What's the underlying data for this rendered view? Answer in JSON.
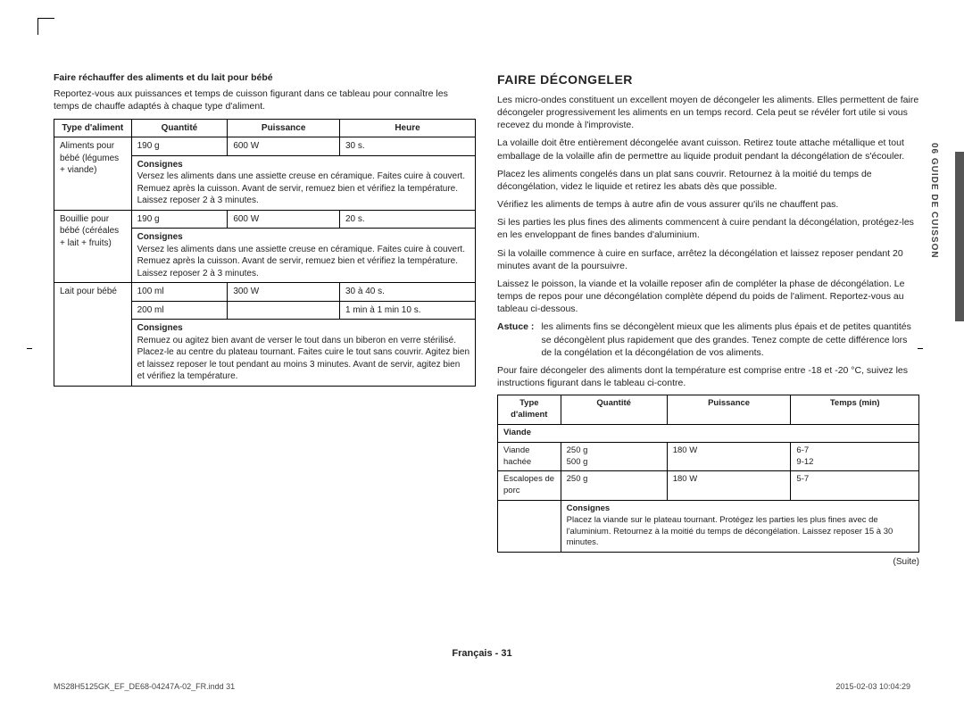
{
  "sideTab": "06  GUIDE DE CUISSON",
  "left": {
    "heading": "Faire réchauffer des aliments et du lait pour bébé",
    "intro": "Reportez-vous aux puissances et temps de cuisson figurant dans ce tableau pour connaître les temps de chauffe adaptés à chaque type d'aliment.",
    "headers": [
      "Type d'aliment",
      "Quantité",
      "Puissance",
      "Heure"
    ],
    "consignesLabel": "Consignes",
    "rows": [
      {
        "type": "Aliments pour bébé (légumes + viande)",
        "qty": "190 g",
        "power": "600 W",
        "time": "30 s.",
        "note": "Versez les aliments dans une assiette creuse en céramique. Faites cuire à couvert. Remuez après la cuisson. Avant de servir, remuez bien et vérifiez la température. Laissez reposer 2 à 3 minutes."
      },
      {
        "type": "Bouillie pour bébé (céréales + lait + fruits)",
        "qty": "190 g",
        "power": "600 W",
        "time": "20 s.",
        "note": "Versez les aliments dans une assiette creuse en céramique. Faites cuire à couvert. Remuez après la cuisson. Avant de servir, remuez bien et vérifiez la température. Laissez reposer 2 à 3 minutes."
      },
      {
        "type": "Lait pour bébé",
        "lines": [
          {
            "qty": "100 ml",
            "power": "300 W",
            "time": "30 à 40 s."
          },
          {
            "qty": "200 ml",
            "power": "",
            "time": "1 min à 1 min 10 s."
          }
        ],
        "note": "Remuez ou agitez bien avant de verser le tout dans un biberon en verre stérilisé. Placez-le au centre du plateau tournant. Faites cuire le tout sans couvrir. Agitez bien et laissez reposer le tout pendant au moins 3 minutes. Avant de servir, agitez bien et vérifiez la température."
      }
    ]
  },
  "right": {
    "title": "FAIRE DÉCONGELER",
    "paras": [
      "Les micro-ondes constituent un excellent moyen de décongeler les aliments. Elles permettent de faire décongeler progressivement les aliments en un temps record. Cela peut se révéler fort utile si vous recevez du monde à l'improviste.",
      "La volaille doit être entièrement décongelée avant cuisson. Retirez toute attache métallique et tout emballage de la volaille afin de permettre au liquide produit pendant la décongélation de s'écouler.",
      "Placez les aliments congelés dans un plat sans couvrir. Retournez à la moitié du temps de décongélation, videz le liquide et retirez les abats dès que possible.",
      "Vérifiez les aliments de temps à autre afin de vous assurer qu'ils ne chauffent pas.",
      "Si les parties les plus fines des aliments commencent à cuire pendant la décongélation, protégez-les en les enveloppant de fines bandes d'aluminium.",
      "Si la volaille commence à cuire en surface, arrêtez la décongélation et laissez reposer pendant 20 minutes avant de la poursuivre.",
      "Laissez le poisson, la viande et la volaille reposer afin de compléter la phase de décongélation. Le temps de repos pour une décongélation complète dépend du poids de l'aliment. Reportez-vous au tableau ci-dessous."
    ],
    "tipLabel": "Astuce :",
    "tipText": "les aliments fins se décongèlent mieux que les aliments plus épais et de petites quantités se décongèlent plus rapidement que des grandes. Tenez compte de cette différence lors de la congélation et la décongélation de vos aliments.",
    "afterTip": "Pour faire décongeler des aliments dont la température est comprise entre -18 et -20 °C, suivez les instructions figurant dans le tableau ci-contre.",
    "tableHeaders": [
      "Type d'aliment",
      "Quantité",
      "Puissance",
      "Temps (min)"
    ],
    "catLabel": "Viande",
    "consignesLabel": "Consignes",
    "rows": [
      {
        "type": "Viande hachée",
        "qty1": "250 g",
        "qty2": "500 g",
        "power": "180 W",
        "t1": "6-7",
        "t2": "9-12"
      },
      {
        "type": "Escalopes de porc",
        "qty1": "250 g",
        "power": "180 W",
        "t1": "5-7"
      }
    ],
    "note": "Placez la viande sur le plateau tournant. Protégez les parties les plus fines avec de l'aluminium. Retournez à la moitié du temps de décongélation. Laissez reposer 15 à 30 minutes.",
    "suite": "(Suite)"
  },
  "footer": "Français - 31",
  "printLeft": "MS28H5125GK_EF_DE68-04247A-02_FR.indd   31",
  "printRight": "2015-02-03   10:04:29"
}
